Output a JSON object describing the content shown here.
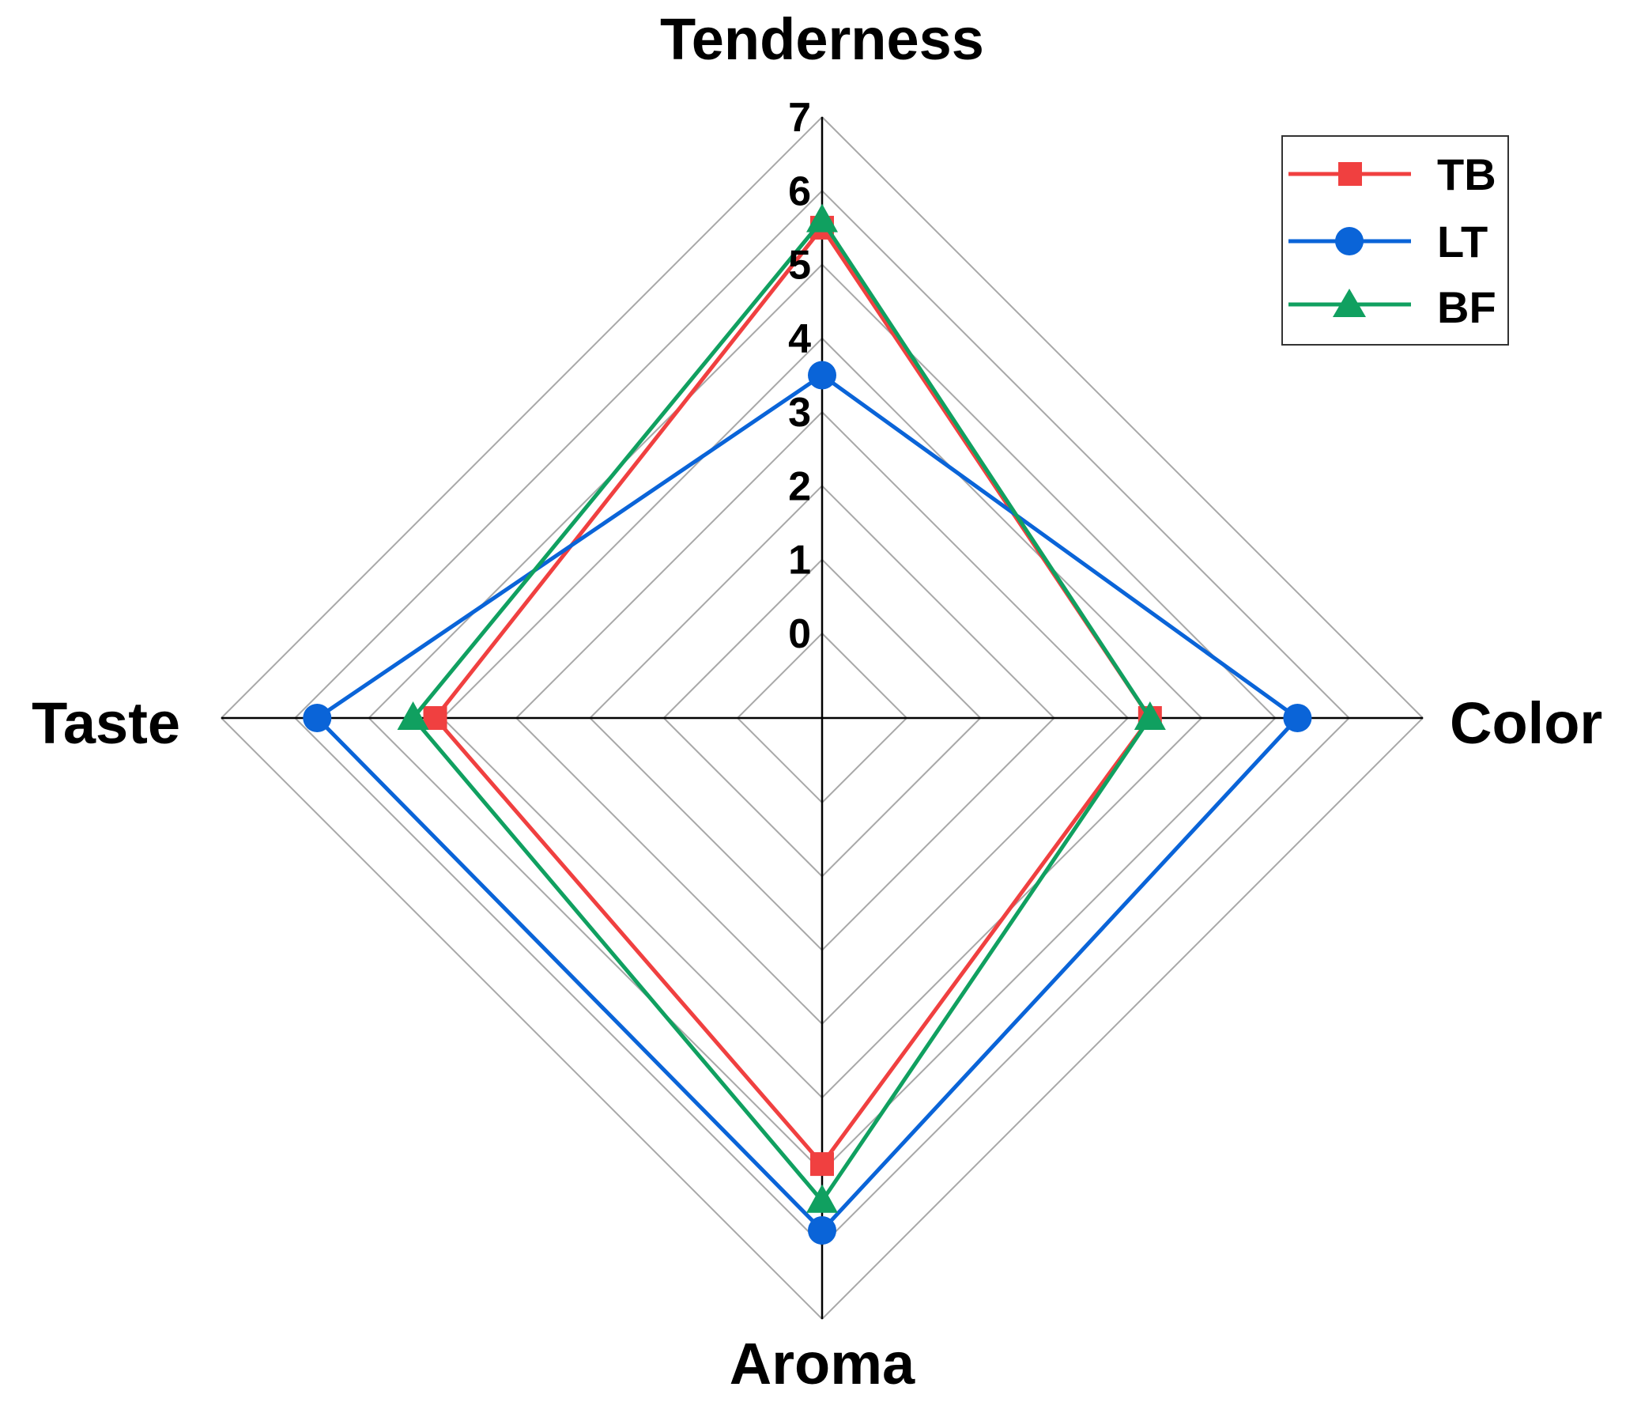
{
  "chart_data": {
    "type": "radar",
    "axes": [
      "Tenderness",
      "Color",
      "Aroma",
      "Taste"
    ],
    "rlim": [
      0,
      7
    ],
    "ticks": [
      "0",
      "1",
      "2",
      "3",
      "4",
      "5",
      "6",
      "7"
    ],
    "grid": true,
    "legend_position": "top-right",
    "series": [
      {
        "name": "TB",
        "color": "#f04040",
        "marker": "square",
        "values": [
          5.5,
          3.3,
          4.9,
          4.1
        ]
      },
      {
        "name": "LT",
        "color": "#0a64d8",
        "marker": "circle",
        "values": [
          3.5,
          5.3,
          5.8,
          5.7
        ]
      },
      {
        "name": "BF",
        "color": "#10a060",
        "marker": "triangle",
        "values": [
          5.6,
          3.3,
          5.4,
          4.4
        ]
      }
    ]
  }
}
